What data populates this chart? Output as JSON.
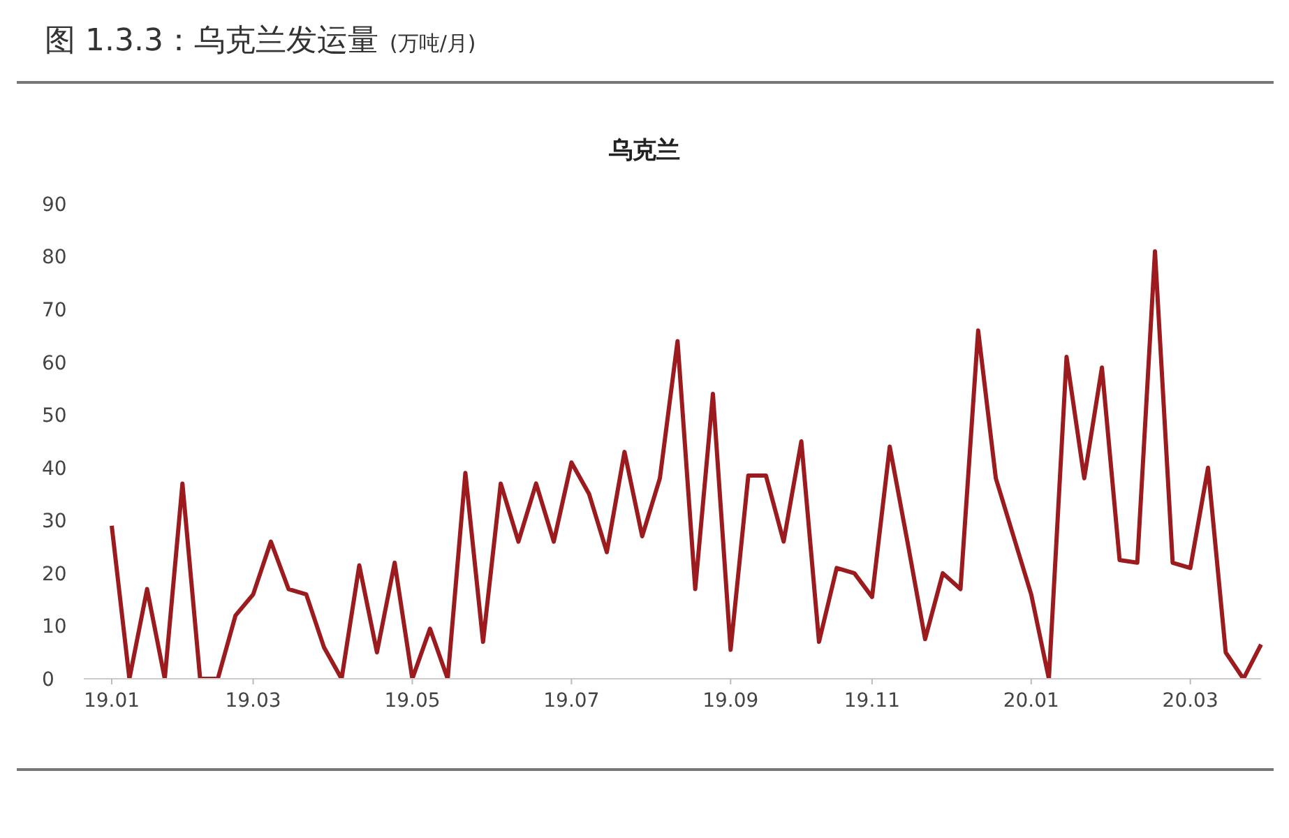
{
  "chart_data": {
    "type": "line",
    "title": "图 1.3.3：乌克兰发运量",
    "subtitle": "(万吨/月)",
    "annotations": [
      "乌克兰"
    ],
    "categories": [
      "19.01",
      null,
      null,
      null,
      null,
      null,
      null,
      null,
      "19.03",
      null,
      null,
      null,
      null,
      null,
      null,
      null,
      null,
      "19.05",
      null,
      null,
      null,
      null,
      null,
      null,
      null,
      null,
      "19.07",
      null,
      null,
      null,
      null,
      null,
      null,
      null,
      null,
      "19.09",
      null,
      null,
      null,
      null,
      null,
      null,
      null,
      "19.11",
      null,
      null,
      null,
      null,
      null,
      null,
      null,
      null,
      "20.01",
      null,
      null,
      null,
      null,
      null,
      null,
      null,
      null,
      "20.03",
      null,
      null,
      null,
      null
    ],
    "series": [
      {
        "color": "#9b1b1e",
        "values": [
          29,
          0,
          17,
          0,
          37,
          0,
          0,
          12,
          16,
          26,
          17,
          16,
          6,
          0,
          21.5,
          5,
          22,
          0,
          9.5,
          0,
          39,
          7,
          37,
          26,
          37,
          26,
          41,
          35,
          24,
          43,
          27,
          38,
          64,
          17,
          54,
          5.5,
          38.5,
          38.5,
          26,
          45,
          7,
          21,
          20,
          15.5,
          44,
          26,
          7.5,
          20,
          17,
          66,
          38,
          27,
          16,
          0,
          61,
          38,
          59,
          22.5,
          22,
          81,
          22,
          21,
          40,
          5,
          0,
          6.5
        ]
      }
    ],
    "ylim": [
      0,
      90
    ],
    "yticks": [
      0,
      10,
      20,
      30,
      40,
      50,
      60,
      70,
      80,
      90
    ],
    "grid": false,
    "legend": false,
    "marker": "none",
    "line_style": "solid"
  }
}
